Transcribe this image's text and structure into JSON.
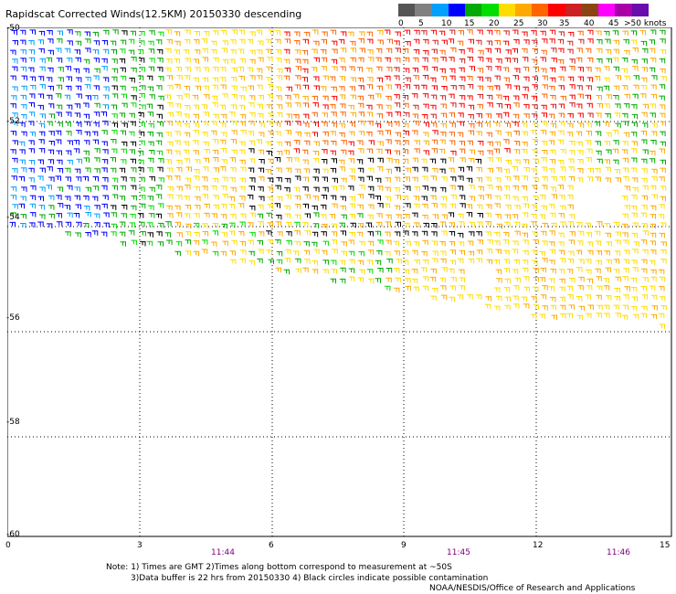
{
  "title": "Rapidscat Corrected Winds(12.5KM) 20150330 descending",
  "legend": {
    "colors": [
      "#555555",
      "#808080",
      "#00a0ff",
      "#0000ff",
      "#00aa00",
      "#00dd00",
      "#ffdd00",
      "#ffaa00",
      "#ff6600",
      "#ff0000",
      "#cc2222",
      "#8b4513",
      "#ff00ff",
      "#aa00aa",
      "#6a0dad"
    ],
    "labels": [
      "0",
      "5",
      "10",
      "15",
      "20",
      "25",
      "30",
      "35",
      "40",
      "45",
      ">50 knots"
    ]
  },
  "axes": {
    "y_labels": [
      "-50",
      "-52",
      "-54",
      "-56",
      "-58",
      "-60"
    ],
    "x_labels": [
      "0",
      "3",
      "6",
      "9",
      "12",
      "15"
    ],
    "times": [
      "11:44",
      "11:45",
      "11:46"
    ]
  },
  "notes": {
    "line1": "Note: 1) Times are GMT 2)Times along bottom correspond to measurement at ~50S",
    "line2": "3)Data buffer is 22 hrs from 20150330 4) Black circles indicate possible contamination",
    "credit": "NOAA/NESDIS/Office of Research and Applications"
  }
}
